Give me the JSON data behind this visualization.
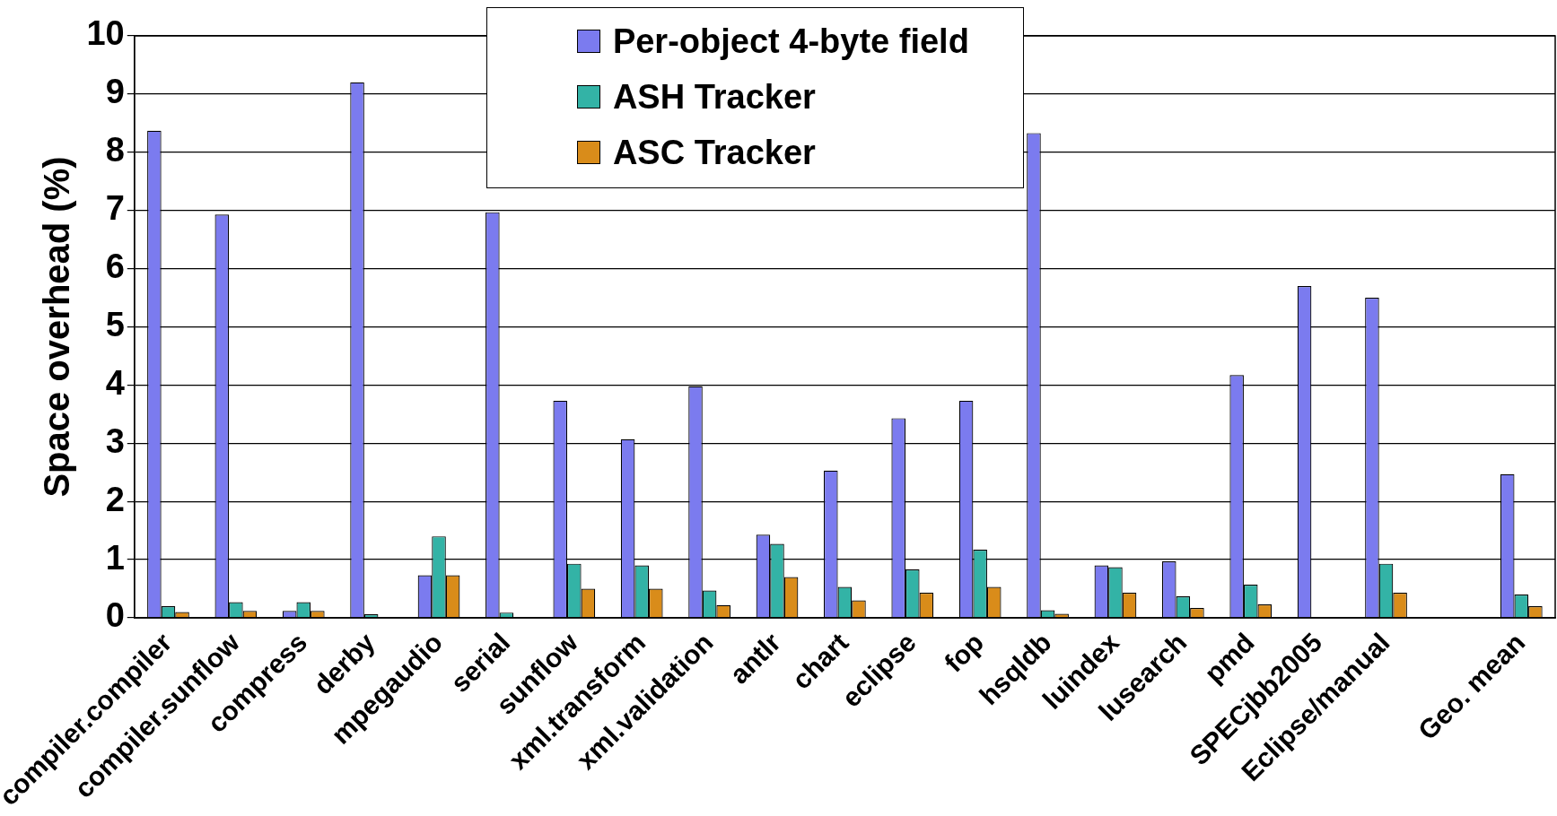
{
  "chart_data": {
    "type": "bar",
    "ylabel": "Space overhead (%)",
    "categories": [
      "compiler.compiler",
      "compiler.sunflow",
      "compress",
      "derby",
      "mpegaudio",
      "serial",
      "sunflow",
      "xml.transform",
      "xml.validation",
      "antlr",
      "chart",
      "eclipse",
      "fop",
      "hsqldb",
      "luindex",
      "lusearch",
      "pmd",
      "SPECjbb2005",
      "Eclipse/manual",
      null,
      "Geo. mean"
    ],
    "series": [
      {
        "name": "Per-object 4-byte field",
        "color": "#7b7bef",
        "values": [
          8.37,
          6.93,
          0.12,
          9.2,
          0.73,
          6.97,
          3.73,
          3.07,
          3.98,
          1.43,
          2.53,
          3.43,
          3.73,
          8.33,
          0.9,
          0.97,
          4.17,
          5.7,
          5.5,
          null,
          2.47
        ]
      },
      {
        "name": "ASH Tracker",
        "color": "#33b3a6",
        "values": [
          0.2,
          0.27,
          0.27,
          0.06,
          1.4,
          0.09,
          0.93,
          0.9,
          0.47,
          1.27,
          0.53,
          0.83,
          1.17,
          0.13,
          0.87,
          0.37,
          0.57,
          null,
          0.93,
          null,
          0.4
        ]
      },
      {
        "name": "ASC Tracker",
        "color": "#d98c1a",
        "values": [
          0.1,
          0.12,
          0.12,
          null,
          0.73,
          null,
          0.5,
          0.5,
          0.22,
          0.7,
          0.3,
          0.43,
          0.53,
          0.07,
          0.43,
          0.17,
          0.23,
          null,
          0.43,
          null,
          0.2
        ]
      }
    ],
    "ylim": [
      0,
      10
    ],
    "yticks": [
      0,
      1,
      2,
      3,
      4,
      5,
      6,
      7,
      8,
      9,
      10
    ],
    "grid": "y",
    "legend": "top"
  }
}
